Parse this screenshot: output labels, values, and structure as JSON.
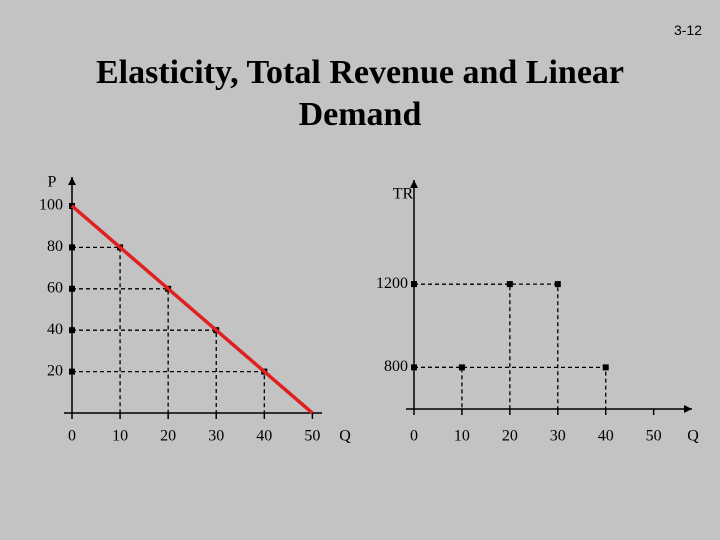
{
  "slide_number": "3-12",
  "title": "Elasticity, Total Revenue and Linear Demand",
  "chart_data": [
    {
      "type": "line",
      "y_label": "P",
      "x_label": "Q",
      "xlim": [
        0,
        52
      ],
      "ylim": [
        0,
        114
      ],
      "xticks": [
        0,
        10,
        20,
        30,
        40,
        50
      ],
      "yticks": [
        20,
        40,
        60,
        80,
        100
      ],
      "series": [
        {
          "color": "#e02020",
          "x": [
            0,
            50
          ],
          "values": [
            100,
            0
          ]
        }
      ],
      "points": {
        "x": [
          10,
          20,
          30,
          40
        ],
        "values": [
          80,
          60,
          40,
          20
        ]
      }
    },
    {
      "type": "scatter",
      "y_label": "TR",
      "x_label": "Q",
      "xlim": [
        0,
        58
      ],
      "ylim": [
        600,
        1700
      ],
      "xticks": [
        0,
        10,
        20,
        30,
        40,
        50
      ],
      "yticks": [
        800,
        1200
      ],
      "points": {
        "x": [
          10,
          20,
          30,
          40
        ],
        "values": [
          800,
          1200,
          1200,
          800
        ]
      }
    }
  ]
}
